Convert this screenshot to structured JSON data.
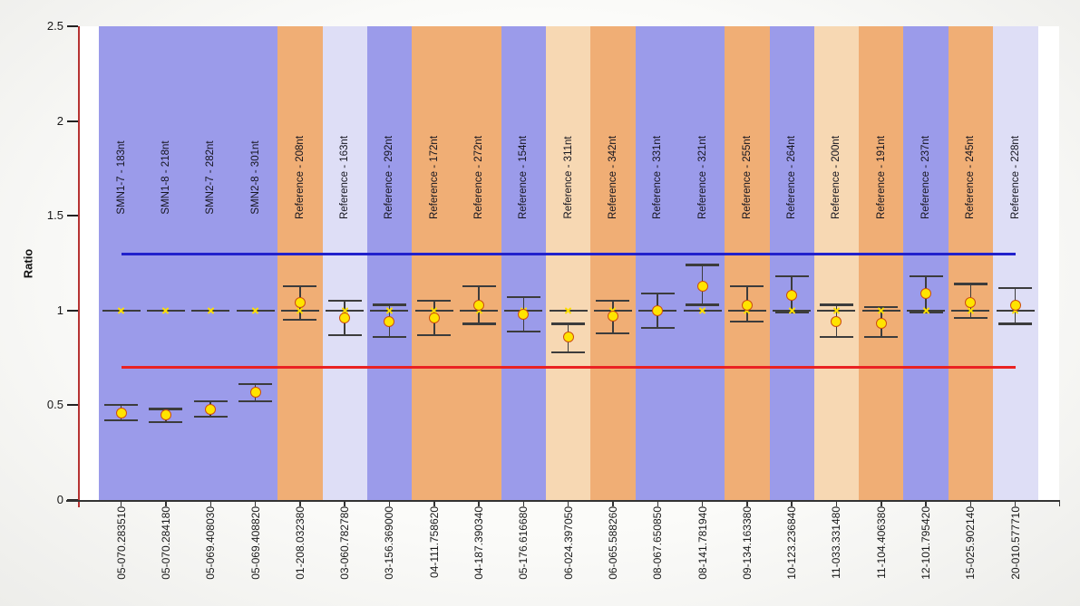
{
  "chart_data": {
    "type": "scatter",
    "title": "",
    "ylabel": "Ratio",
    "xlabel": "",
    "ylim": [
      0,
      2.5
    ],
    "ytick_labels": [
      "0",
      "0.5",
      "1",
      "1.5",
      "2",
      "2.5"
    ],
    "grid": false,
    "legend": "none",
    "upper_limit_line": 1.3,
    "lower_limit_line": 0.7,
    "target_ratio": 1.0,
    "columns": [
      {
        "sample": "05-070.283510",
        "probe": "SMN1-7 - 183nt",
        "band": "blue",
        "value": 0.46,
        "upper": 0.5,
        "lower": 0.42
      },
      {
        "sample": "05-070.284180",
        "probe": "SMN1-8 - 218nt",
        "band": "blue",
        "value": 0.45,
        "upper": 0.48,
        "lower": 0.41
      },
      {
        "sample": "05-069.408030",
        "probe": "SMN2-7 - 282nt",
        "band": "blue",
        "value": 0.48,
        "upper": 0.52,
        "lower": 0.44
      },
      {
        "sample": "05-069.408820",
        "probe": "SMN2-8 - 301nt",
        "band": "blue",
        "value": 0.57,
        "upper": 0.61,
        "lower": 0.52
      },
      {
        "sample": "01-208.032380",
        "probe": "Reference - 208nt",
        "band": "orange",
        "value": 1.04,
        "upper": 1.13,
        "lower": 0.95
      },
      {
        "sample": "03-060.782780",
        "probe": "Reference - 163nt",
        "band": "lavender",
        "value": 0.96,
        "upper": 1.05,
        "lower": 0.87
      },
      {
        "sample": "03-156.369000",
        "probe": "Reference - 292nt",
        "band": "blue",
        "value": 0.94,
        "upper": 1.03,
        "lower": 0.86
      },
      {
        "sample": "04-111.758620",
        "probe": "Reference - 172nt",
        "band": "orange",
        "value": 0.96,
        "upper": 1.05,
        "lower": 0.87
      },
      {
        "sample": "04-187.390340",
        "probe": "Reference - 272nt",
        "band": "orange",
        "value": 1.03,
        "upper": 1.13,
        "lower": 0.93
      },
      {
        "sample": "05-176.616680",
        "probe": "Reference - 154nt",
        "band": "blue",
        "value": 0.98,
        "upper": 1.07,
        "lower": 0.89
      },
      {
        "sample": "06-024.397050",
        "probe": "Reference - 311nt",
        "band": "peach",
        "value": 0.86,
        "upper": 0.93,
        "lower": 0.78
      },
      {
        "sample": "06-065.588260",
        "probe": "Reference - 342nt",
        "band": "orange",
        "value": 0.97,
        "upper": 1.05,
        "lower": 0.88
      },
      {
        "sample": "08-067.650850",
        "probe": "Reference - 331nt",
        "band": "blue",
        "value": 1.0,
        "upper": 1.09,
        "lower": 0.91
      },
      {
        "sample": "08-141.781940",
        "probe": "Reference - 321nt",
        "band": "blue",
        "value": 1.13,
        "upper": 1.24,
        "lower": 1.03
      },
      {
        "sample": "09-134.163380",
        "probe": "Reference - 255nt",
        "band": "orange",
        "value": 1.03,
        "upper": 1.13,
        "lower": 0.94
      },
      {
        "sample": "10-123.236840",
        "probe": "Reference - 264nt",
        "band": "blue",
        "value": 1.08,
        "upper": 1.18,
        "lower": 0.99
      },
      {
        "sample": "11-033.331480",
        "probe": "Reference - 200nt",
        "band": "peach",
        "value": 0.94,
        "upper": 1.03,
        "lower": 0.86
      },
      {
        "sample": "11-104.406380",
        "probe": "Reference - 191nt",
        "band": "orange",
        "value": 0.93,
        "upper": 1.02,
        "lower": 0.86
      },
      {
        "sample": "12-101.795420",
        "probe": "Reference - 237nt",
        "band": "blue",
        "value": 1.09,
        "upper": 1.18,
        "lower": 0.99
      },
      {
        "sample": "15-025.902140",
        "probe": "Reference - 245nt",
        "band": "orange",
        "value": 1.04,
        "upper": 1.14,
        "lower": 0.96
      },
      {
        "sample": "20-010.577710",
        "probe": "Reference - 228nt",
        "band": "lavender",
        "value": 1.03,
        "upper": 1.12,
        "lower": 0.93
      }
    ],
    "colors": {
      "band_blue": "#9b9bea",
      "band_orange": "#f0ae75",
      "band_lavender": "#dedef6",
      "band_peach": "#f7d8b3",
      "upper_limit_line": "#2121cc",
      "lower_limit_line": "#ea2222",
      "marker_fill": "#ffe400",
      "marker_stroke": "#cc4d10",
      "target_star": "#ffdf00",
      "whisker": "#3c3c3c",
      "y_axis_line": "#b63232",
      "x_axis_line": "#333333",
      "plot_background": "#ffffff"
    }
  }
}
